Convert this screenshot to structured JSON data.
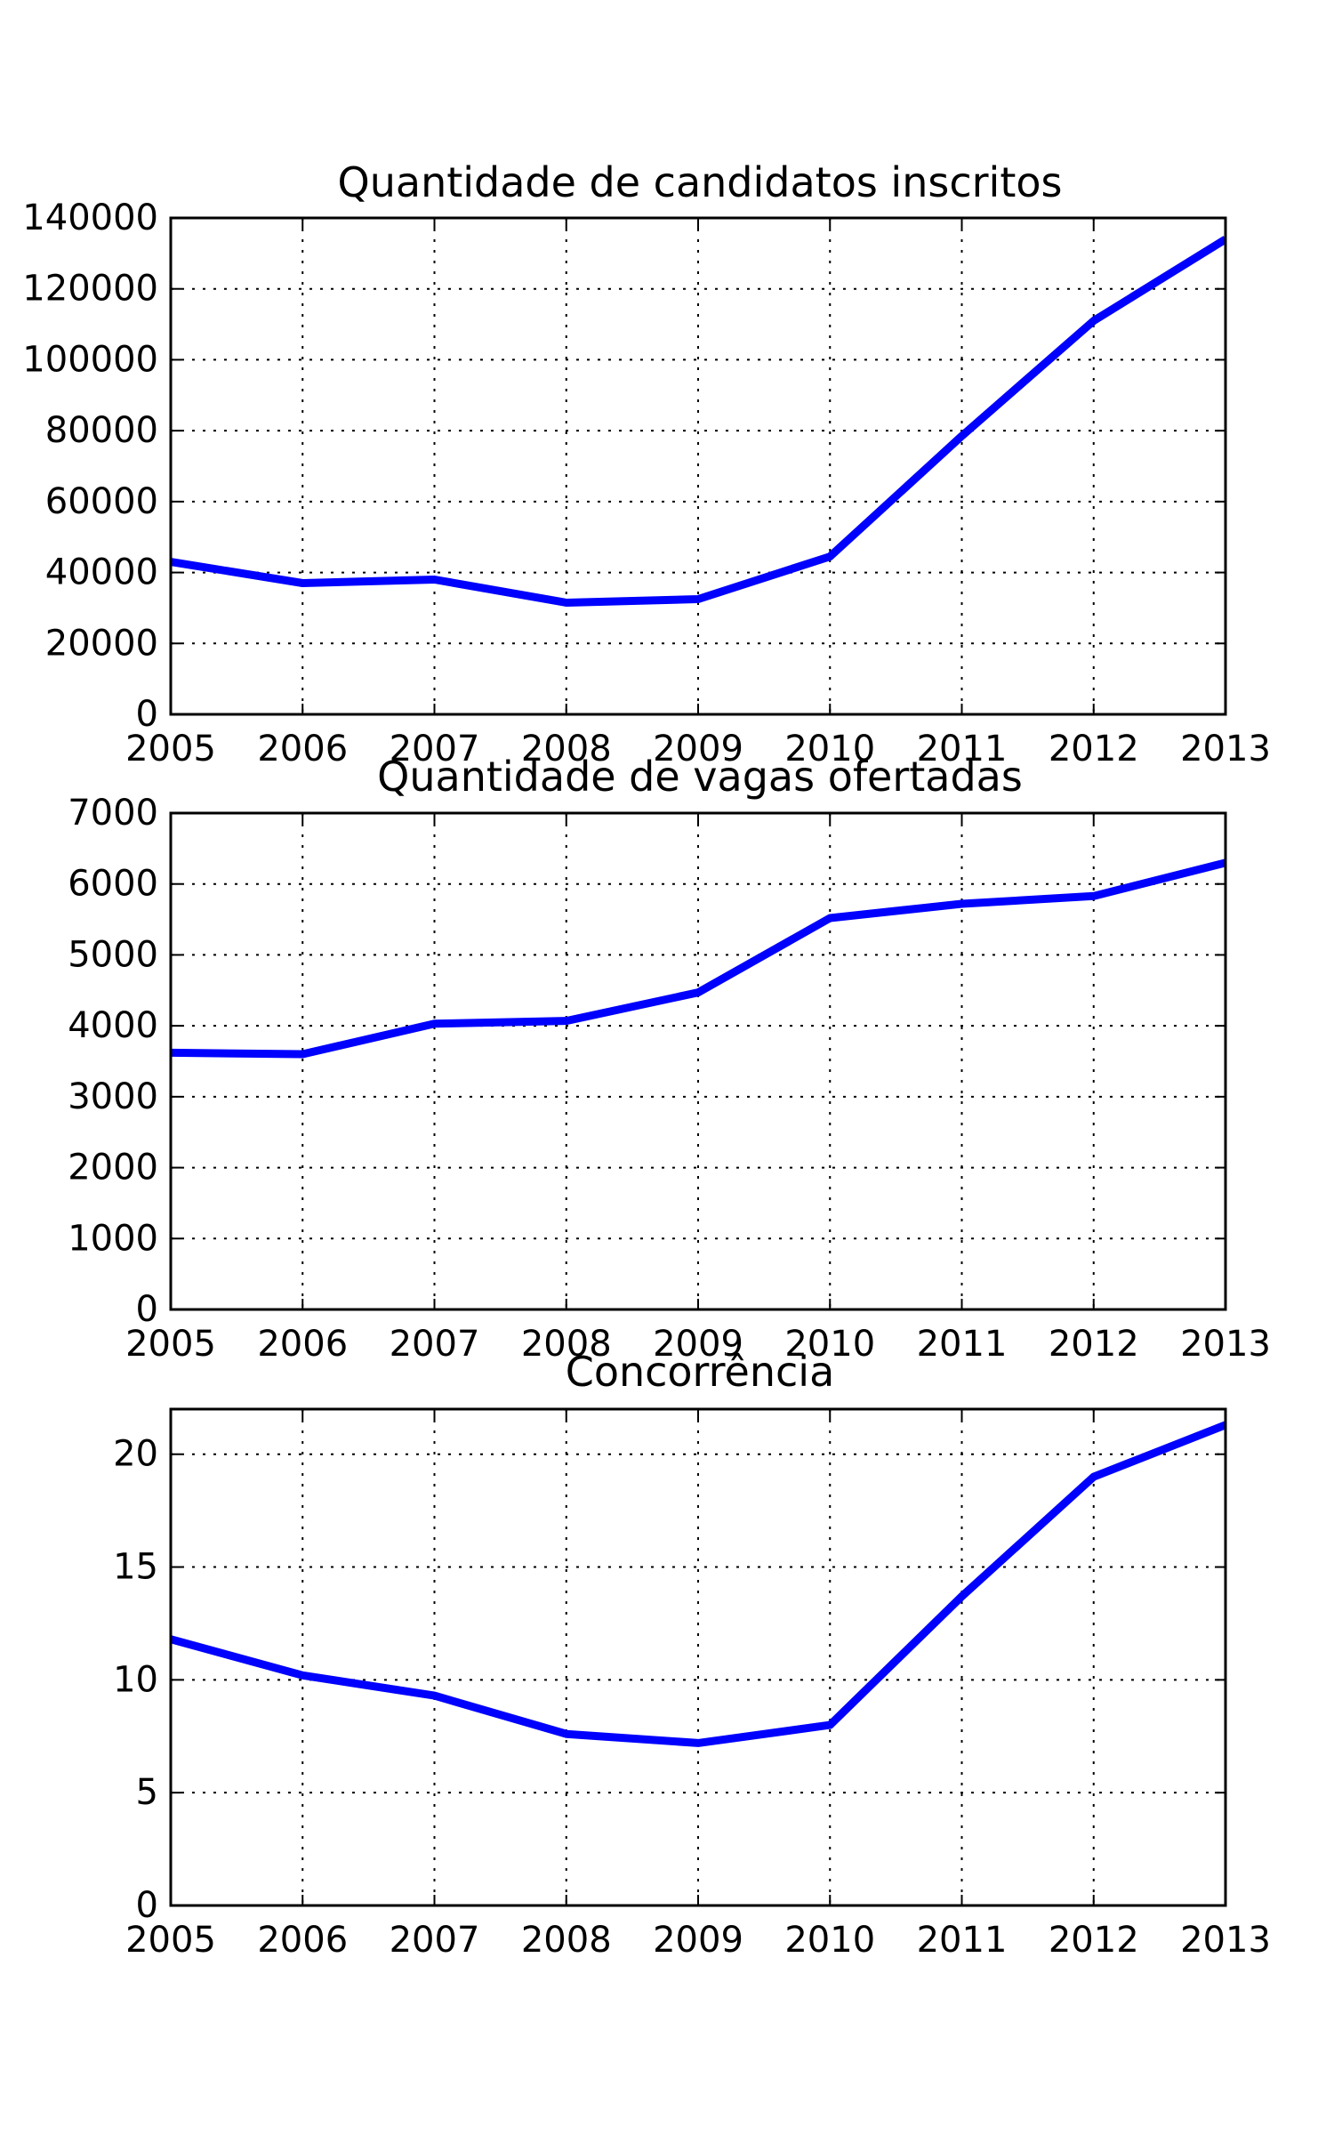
{
  "chart_data": [
    {
      "type": "line",
      "title": "Quantidade de candidatos inscritos",
      "xlabel": "",
      "ylabel": "",
      "x": [
        2005,
        2006,
        2007,
        2008,
        2009,
        2010,
        2011,
        2012,
        2013
      ],
      "xlim": [
        2005,
        2013
      ],
      "ylim": [
        0,
        140000
      ],
      "xticks": [
        2005,
        2006,
        2007,
        2008,
        2009,
        2010,
        2011,
        2012,
        2013
      ],
      "yticks": [
        0,
        20000,
        40000,
        60000,
        80000,
        100000,
        120000,
        140000
      ],
      "grid": true,
      "series": [
        {
          "color": "#0000ff",
          "values": [
            43000,
            37000,
            38000,
            31500,
            32500,
            44500,
            78500,
            111000,
            134000
          ]
        }
      ]
    },
    {
      "type": "line",
      "title": "Quantidade de vagas ofertadas",
      "xlabel": "",
      "ylabel": "",
      "x": [
        2005,
        2006,
        2007,
        2008,
        2009,
        2010,
        2011,
        2012,
        2013
      ],
      "xlim": [
        2005,
        2013
      ],
      "ylim": [
        0,
        7000
      ],
      "xticks": [
        2005,
        2006,
        2007,
        2008,
        2009,
        2010,
        2011,
        2012,
        2013
      ],
      "yticks": [
        0,
        1000,
        2000,
        3000,
        4000,
        5000,
        6000,
        7000
      ],
      "grid": true,
      "series": [
        {
          "color": "#0000ff",
          "values": [
            3620,
            3600,
            4030,
            4070,
            4470,
            5520,
            5720,
            5830,
            6300
          ]
        }
      ]
    },
    {
      "type": "line",
      "title": "Concorrência",
      "xlabel": "",
      "ylabel": "",
      "x": [
        2005,
        2006,
        2007,
        2008,
        2009,
        2010,
        2011,
        2012,
        2013
      ],
      "xlim": [
        2005,
        2013
      ],
      "ylim": [
        0,
        22
      ],
      "xticks": [
        2005,
        2006,
        2007,
        2008,
        2009,
        2010,
        2011,
        2012,
        2013
      ],
      "yticks": [
        0,
        5,
        10,
        15,
        20
      ],
      "grid": true,
      "series": [
        {
          "color": "#0000ff",
          "values": [
            11.8,
            10.2,
            9.3,
            7.6,
            7.2,
            8.0,
            13.7,
            19.0,
            21.3
          ]
        }
      ]
    }
  ]
}
